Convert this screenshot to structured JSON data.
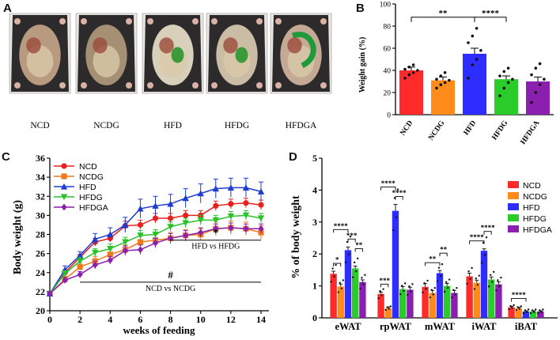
{
  "panels": {
    "a": "A",
    "b": "B",
    "c": "C",
    "d": "D"
  },
  "photos": {
    "labels": [
      "NCD",
      "NCDG",
      "HFD",
      "HFDG",
      "HFDGA"
    ],
    "colors": {
      "NCD": "#b79a80",
      "NCDG": "#a69075",
      "HFD": "#d8d0bb",
      "HFDG": "#cbbca6",
      "HFDGA": "#c4a994"
    }
  },
  "chart_data": [
    {
      "id": "B",
      "type": "bar",
      "title": "",
      "ylabel": "Weight gain (%)",
      "xlabel": "",
      "ylim": [
        0,
        100
      ],
      "yticks": [
        0,
        20,
        40,
        60,
        80,
        100
      ],
      "categories": [
        "NCD",
        "NCDG",
        "HFD",
        "HFDG",
        "HFDGA"
      ],
      "values": [
        40,
        31,
        55,
        32,
        30
      ],
      "errors": [
        3,
        3,
        5,
        3,
        4
      ],
      "colors": [
        "#ff2a2a",
        "#ff8c1a",
        "#2d2dff",
        "#29cc29",
        "#8a1fb0"
      ],
      "points": [
        [
          33,
          36,
          38,
          40,
          41,
          43,
          45
        ],
        [
          24,
          27,
          29,
          31,
          32,
          35,
          38
        ],
        [
          33,
          45,
          50,
          58,
          65,
          71,
          78
        ],
        [
          17,
          24,
          29,
          32,
          35,
          39,
          42
        ],
        [
          11,
          20,
          27,
          32,
          36,
          42,
          46
        ]
      ],
      "significance": [
        {
          "from": "NCD",
          "to": "HFD",
          "label": "**"
        },
        {
          "from": "HFD",
          "to": "HFDG",
          "label": "****"
        }
      ]
    },
    {
      "id": "C",
      "type": "line",
      "title": "",
      "xlabel": "weeks of feeding",
      "ylabel": "Body weight (g)",
      "xlim": [
        0,
        14
      ],
      "ylim": [
        20,
        36
      ],
      "xticks": [
        0,
        2,
        4,
        6,
        8,
        10,
        12,
        14
      ],
      "yticks": [
        20,
        22,
        24,
        26,
        28,
        30,
        32,
        34,
        36
      ],
      "legend_position": "top-left",
      "x": [
        0,
        1,
        2,
        3,
        4,
        5,
        6,
        7,
        8,
        9,
        10,
        11,
        12,
        13,
        14
      ],
      "series": [
        {
          "name": "NCD",
          "color": "#e8201e",
          "marker": "circle",
          "values": [
            21.8,
            24.0,
            25.6,
            27.2,
            27.6,
            28.9,
            29.0,
            29.7,
            29.7,
            30.0,
            30.0,
            31.0,
            31.2,
            31.3,
            31.1
          ],
          "errors": [
            0.2,
            0.3,
            0.3,
            0.4,
            0.4,
            0.5,
            0.5,
            0.5,
            0.5,
            0.5,
            0.5,
            0.5,
            0.5,
            0.5,
            0.5
          ]
        },
        {
          "name": "NCDG",
          "color": "#f07a1e",
          "marker": "square",
          "values": [
            21.8,
            23.3,
            24.6,
            25.2,
            25.9,
            26.4,
            27.2,
            27.4,
            27.6,
            27.9,
            28.0,
            28.6,
            28.7,
            28.6,
            28.2
          ],
          "errors": [
            0.2,
            0.3,
            0.4,
            0.5,
            0.5,
            0.5,
            0.6,
            0.6,
            0.6,
            0.6,
            0.6,
            0.7,
            0.7,
            0.7,
            0.7
          ]
        },
        {
          "name": "HFD",
          "color": "#1e3cd2",
          "marker": "triangle-up",
          "values": [
            21.8,
            24.3,
            25.8,
            27.5,
            28.0,
            29.0,
            30.7,
            31.0,
            31.2,
            31.8,
            32.3,
            32.8,
            32.9,
            32.9,
            32.5
          ],
          "errors": [
            0.2,
            0.4,
            0.4,
            0.6,
            0.7,
            0.8,
            1.0,
            1.0,
            1.0,
            1.0,
            1.0,
            1.0,
            1.0,
            1.0,
            1.0
          ]
        },
        {
          "name": "HFDG",
          "color": "#28c328",
          "marker": "triangle-down",
          "values": [
            21.8,
            23.9,
            25.2,
            26.1,
            26.5,
            27.2,
            27.9,
            28.0,
            28.8,
            29.2,
            29.5,
            29.5,
            29.9,
            30.0,
            29.7
          ],
          "errors": [
            0.2,
            0.3,
            0.4,
            0.4,
            0.5,
            0.5,
            0.5,
            0.5,
            0.5,
            0.5,
            0.5,
            0.5,
            0.5,
            0.5,
            0.5
          ]
        },
        {
          "name": "HFDGA",
          "color": "#8a1fb0",
          "marker": "diamond",
          "values": [
            21.8,
            23.2,
            23.8,
            24.8,
            25.3,
            26.3,
            26.4,
            27.1,
            27.6,
            27.9,
            28.2,
            28.6,
            28.7,
            28.6,
            28.6
          ],
          "errors": [
            0.2,
            0.3,
            0.3,
            0.4,
            0.4,
            0.5,
            0.5,
            0.5,
            0.5,
            0.5,
            0.5,
            0.5,
            0.5,
            0.5,
            0.5
          ]
        }
      ],
      "annotations": [
        {
          "label": "*",
          "text": "HFD vs HFDG",
          "x_from": 8,
          "x_to": 14,
          "y": 27.4
        },
        {
          "label": "#",
          "text": "NCD vs NCDG",
          "x_from": 2,
          "x_to": 14,
          "y": 23.0
        }
      ]
    },
    {
      "id": "D",
      "type": "bar",
      "title": "",
      "xlabel": "",
      "ylabel": "% of body weight",
      "ylim": [
        0,
        5
      ],
      "yticks": [
        0,
        1,
        2,
        3,
        4,
        5
      ],
      "legend_position": "top-right",
      "categories": [
        "eWAT",
        "rpWAT",
        "mWAT",
        "iWAT",
        "iBAT"
      ],
      "series": [
        {
          "name": "NCD",
          "color": "#ff2a2a",
          "values": [
            1.38,
            0.75,
            0.97,
            1.3,
            0.33
          ],
          "errors": [
            0.08,
            0.06,
            0.1,
            0.1,
            0.03
          ]
        },
        {
          "name": "NCDG",
          "color": "#ff8c1a",
          "values": [
            0.98,
            0.3,
            0.78,
            1.1,
            0.3
          ],
          "errors": [
            0.08,
            0.04,
            0.08,
            0.08,
            0.03
          ]
        },
        {
          "name": "HFD",
          "color": "#2d2dff",
          "values": [
            2.12,
            3.35,
            1.4,
            2.1,
            0.2
          ],
          "errors": [
            0.1,
            0.2,
            0.08,
            0.06,
            0.02
          ]
        },
        {
          "name": "HFDG",
          "color": "#29cc29",
          "values": [
            1.55,
            0.9,
            1.0,
            1.2,
            0.2
          ],
          "errors": [
            0.07,
            0.08,
            0.08,
            0.08,
            0.02
          ]
        },
        {
          "name": "HFDGA",
          "color": "#8a1fb0",
          "values": [
            1.12,
            0.88,
            0.78,
            1.05,
            0.2
          ],
          "errors": [
            0.07,
            0.08,
            0.08,
            0.08,
            0.02
          ]
        }
      ],
      "significance": [
        {
          "group": "eWAT",
          "pairs": [
            {
              "from": 0,
              "to": 1,
              "label": "*"
            },
            {
              "from": 0,
              "to": 2,
              "label": "****"
            },
            {
              "from": 2,
              "to": 3,
              "label": "***"
            },
            {
              "from": 3,
              "to": 4,
              "label": "**"
            }
          ]
        },
        {
          "group": "rpWAT",
          "pairs": [
            {
              "from": 0,
              "to": 1,
              "label": "***"
            },
            {
              "from": 0,
              "to": 2,
              "label": "****"
            },
            {
              "from": 2,
              "to": 3,
              "label": "****"
            }
          ]
        },
        {
          "group": "mWAT",
          "pairs": [
            {
              "from": 0,
              "to": 2,
              "label": "**"
            },
            {
              "from": 2,
              "to": 3,
              "label": "**"
            }
          ]
        },
        {
          "group": "iWAT",
          "pairs": [
            {
              "from": 0,
              "to": 2,
              "label": "****"
            },
            {
              "from": 2,
              "to": 3,
              "label": "****"
            }
          ]
        },
        {
          "group": "iBAT",
          "pairs": [
            {
              "from": 0,
              "to": 2,
              "label": "****"
            }
          ]
        }
      ]
    }
  ]
}
